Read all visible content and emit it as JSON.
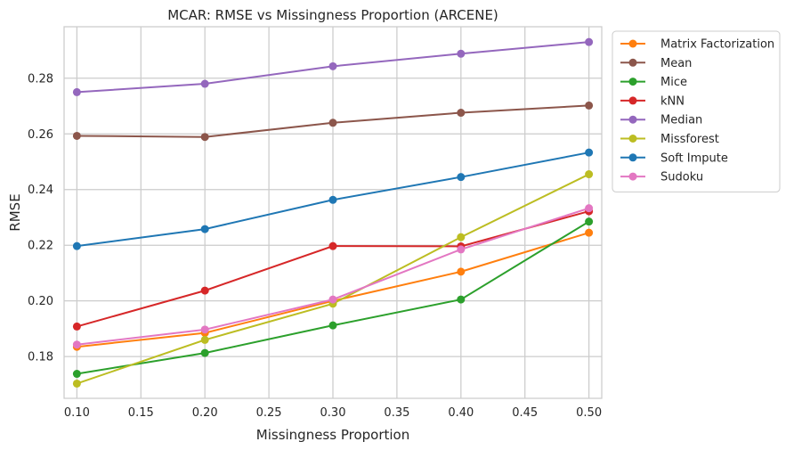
{
  "chart_data": {
    "type": "line",
    "title": "MCAR: RMSE vs Missingness Proportion (ARCENE)",
    "xlabel": "Missingness Proportion",
    "ylabel": "RMSE",
    "xlim": [
      0.09,
      0.51
    ],
    "ylim": [
      0.165,
      0.2985
    ],
    "xticks": [
      0.1,
      0.15,
      0.2,
      0.25,
      0.3,
      0.35,
      0.4,
      0.45,
      0.5
    ],
    "xtick_labels": [
      "0.10",
      "0.15",
      "0.20",
      "0.25",
      "0.30",
      "0.35",
      "0.40",
      "0.45",
      "0.50"
    ],
    "yticks": [
      0.18,
      0.2,
      0.22,
      0.24,
      0.26,
      0.28
    ],
    "ytick_labels": [
      "0.18",
      "0.20",
      "0.22",
      "0.24",
      "0.26",
      "0.28"
    ],
    "grid": true,
    "legend_position": "outside-top-right",
    "x": [
      0.1,
      0.2,
      0.3,
      0.4,
      0.5
    ],
    "series": [
      {
        "name": "Matrix Factorization",
        "color": "#ff7f0e",
        "values": [
          0.1835,
          0.1885,
          0.2,
          0.2105,
          0.2245
        ]
      },
      {
        "name": "Mean",
        "color": "#8c564b",
        "values": [
          0.2593,
          0.2589,
          0.264,
          0.2676,
          0.2702
        ]
      },
      {
        "name": "Mice",
        "color": "#2ca02c",
        "values": [
          0.1738,
          0.1813,
          0.1912,
          0.2005,
          0.2285
        ]
      },
      {
        "name": "kNN",
        "color": "#d62728",
        "values": [
          0.1908,
          0.2037,
          0.2197,
          0.2196,
          0.2322
        ]
      },
      {
        "name": "Median",
        "color": "#9467bd",
        "values": [
          0.275,
          0.278,
          0.2843,
          0.2888,
          0.293
        ]
      },
      {
        "name": "Missforest",
        "color": "#bcbd22",
        "values": [
          0.1703,
          0.186,
          0.199,
          0.2229,
          0.2455
        ]
      },
      {
        "name": "Soft Impute",
        "color": "#1f77b4",
        "values": [
          0.2197,
          0.2258,
          0.2363,
          0.2445,
          0.2533
        ]
      },
      {
        "name": "Sudoku",
        "color": "#e377c2",
        "values": [
          0.1843,
          0.1897,
          0.2005,
          0.2185,
          0.2333
        ]
      }
    ]
  }
}
